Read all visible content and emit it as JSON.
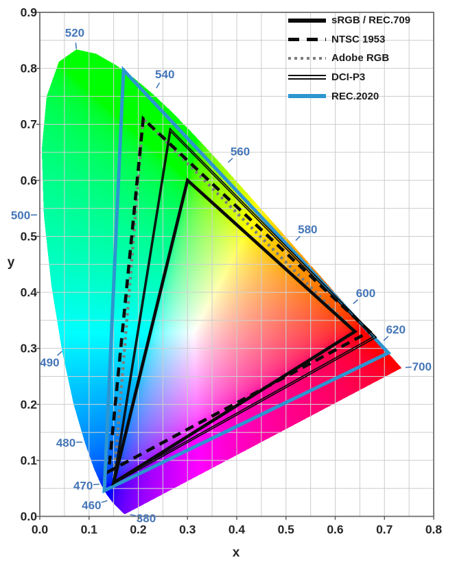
{
  "figure": {
    "xlabel": "x",
    "ylabel": "y"
  },
  "colors": {
    "wavelength_label": "#4576b8",
    "axis_text": "#262626",
    "grid": "#cccccc",
    "grid_over_fill": "rgba(255,255,255,0.25)",
    "plot_border": "#6e6e6e",
    "tick": "#555555",
    "rec2020_blue": "#2d96d0",
    "adobe_gray": "#7d7d7d",
    "line_black": "#0a0a0a"
  },
  "legend": {
    "items": [
      {
        "label": "sRGB / REC.709",
        "line_style": "solid",
        "color": "#0a0a0a"
      },
      {
        "label": "NTSC 1953",
        "line_style": "dashed",
        "color": "#0a0a0a"
      },
      {
        "label": "Adobe RGB",
        "line_style": "dotted",
        "color": "#7d7d7d"
      },
      {
        "label": "DCI-P3",
        "line_style": "double",
        "color": "#0a0a0a"
      },
      {
        "label": "REC.2020",
        "line_style": "solid",
        "color": "#2d96d0"
      }
    ]
  },
  "chart_data": {
    "type": "area",
    "subtype": "cie-1931-xy-chromaticity-diagram",
    "title": "",
    "xlabel": "x",
    "ylabel": "y",
    "xlim": [
      0.0,
      0.8
    ],
    "ylim": [
      0.0,
      0.9
    ],
    "x_ticks": [
      0.0,
      0.1,
      0.2,
      0.3,
      0.4,
      0.5,
      0.6,
      0.7,
      0.8
    ],
    "y_ticks": [
      0.0,
      0.1,
      0.2,
      0.3,
      0.4,
      0.5,
      0.6,
      0.7,
      0.8,
      0.9
    ],
    "grid_step": 0.05,
    "grid": true,
    "legend_position": "top-right",
    "gamuts": [
      {
        "name": "sRGB / REC.709",
        "style": "solid",
        "color": "#0a0a0a",
        "primaries": {
          "red": [
            0.64,
            0.33
          ],
          "green": [
            0.3,
            0.6
          ],
          "blue": [
            0.15,
            0.06
          ]
        }
      },
      {
        "name": "NTSC 1953",
        "style": "dashed",
        "color": "#0a0a0a",
        "primaries": {
          "red": [
            0.67,
            0.33
          ],
          "green": [
            0.21,
            0.71
          ],
          "blue": [
            0.14,
            0.08
          ]
        }
      },
      {
        "name": "Adobe RGB",
        "style": "dotted",
        "color": "#7d7d7d",
        "primaries": {
          "red": [
            0.64,
            0.33
          ],
          "green": [
            0.21,
            0.71
          ],
          "blue": [
            0.15,
            0.06
          ]
        }
      },
      {
        "name": "DCI-P3",
        "style": "double",
        "color": "#0a0a0a",
        "primaries": {
          "red": [
            0.68,
            0.32
          ],
          "green": [
            0.265,
            0.69
          ],
          "blue": [
            0.15,
            0.06
          ]
        }
      },
      {
        "name": "REC.2020",
        "style": "solid",
        "color": "#2d96d0",
        "primaries": {
          "red": [
            0.708,
            0.292
          ],
          "green": [
            0.17,
            0.797
          ],
          "blue": [
            0.131,
            0.046
          ]
        }
      }
    ],
    "wavelength_labels": [
      {
        "nm": 380,
        "label_xy": [
          0.216,
          -0.003
        ],
        "locus_xy": [
          0.1741,
          0.005
        ]
      },
      {
        "nm": 460,
        "label_xy": [
          0.105,
          0.02
        ],
        "locus_xy": [
          0.144,
          0.0297
        ]
      },
      {
        "nm": 470,
        "label_xy": [
          0.088,
          0.055
        ],
        "locus_xy": [
          0.1241,
          0.0578
        ]
      },
      {
        "nm": 480,
        "label_xy": [
          0.053,
          0.132
        ],
        "locus_xy": [
          0.0913,
          0.1327
        ]
      },
      {
        "nm": 490,
        "label_xy": [
          0.02,
          0.275
        ],
        "locus_xy": [
          0.0454,
          0.295
        ]
      },
      {
        "nm": 500,
        "label_xy": [
          -0.039,
          0.538
        ],
        "locus_xy": [
          0.0082,
          0.5384
        ]
      },
      {
        "nm": 520,
        "label_xy": [
          0.071,
          0.864
        ],
        "locus_xy": [
          0.0743,
          0.8338
        ]
      },
      {
        "nm": 540,
        "label_xy": [
          0.254,
          0.79
        ],
        "locus_xy": [
          0.2296,
          0.7543
        ]
      },
      {
        "nm": 560,
        "label_xy": [
          0.407,
          0.652
        ],
        "locus_xy": [
          0.3731,
          0.6245
        ]
      },
      {
        "nm": 580,
        "label_xy": [
          0.544,
          0.513
        ],
        "locus_xy": [
          0.5125,
          0.4866
        ]
      },
      {
        "nm": 600,
        "label_xy": [
          0.662,
          0.399
        ],
        "locus_xy": [
          0.627,
          0.3725
        ]
      },
      {
        "nm": 620,
        "label_xy": [
          0.723,
          0.334
        ],
        "locus_xy": [
          0.6915,
          0.3083
        ]
      },
      {
        "nm": 700,
        "label_xy": [
          0.776,
          0.268
        ],
        "locus_xy": [
          0.7347,
          0.2653
        ]
      }
    ],
    "spectral_locus": [
      [
        380,
        0.1741,
        0.005
      ],
      [
        385,
        0.174,
        0.005
      ],
      [
        390,
        0.1738,
        0.0049
      ],
      [
        395,
        0.1736,
        0.0049
      ],
      [
        400,
        0.1733,
        0.0048
      ],
      [
        405,
        0.173,
        0.0048
      ],
      [
        410,
        0.1726,
        0.0048
      ],
      [
        415,
        0.1721,
        0.0048
      ],
      [
        420,
        0.1714,
        0.0051
      ],
      [
        425,
        0.1703,
        0.0058
      ],
      [
        430,
        0.1689,
        0.0069
      ],
      [
        435,
        0.1669,
        0.0086
      ],
      [
        440,
        0.1644,
        0.0109
      ],
      [
        445,
        0.1611,
        0.0138
      ],
      [
        450,
        0.1566,
        0.0177
      ],
      [
        455,
        0.151,
        0.0227
      ],
      [
        460,
        0.144,
        0.0297
      ],
      [
        465,
        0.1355,
        0.0399
      ],
      [
        470,
        0.1241,
        0.0578
      ],
      [
        475,
        0.1096,
        0.0868
      ],
      [
        480,
        0.0913,
        0.1327
      ],
      [
        485,
        0.0687,
        0.2007
      ],
      [
        490,
        0.0454,
        0.295
      ],
      [
        495,
        0.0235,
        0.4127
      ],
      [
        500,
        0.0082,
        0.5384
      ],
      [
        505,
        0.0039,
        0.6548
      ],
      [
        510,
        0.0139,
        0.7502
      ],
      [
        515,
        0.0389,
        0.812
      ],
      [
        520,
        0.0743,
        0.8338
      ],
      [
        525,
        0.1142,
        0.8262
      ],
      [
        530,
        0.1547,
        0.8059
      ],
      [
        535,
        0.1929,
        0.7816
      ],
      [
        540,
        0.2296,
        0.7543
      ],
      [
        545,
        0.2658,
        0.7243
      ],
      [
        550,
        0.3016,
        0.6923
      ],
      [
        555,
        0.3373,
        0.6589
      ],
      [
        560,
        0.3731,
        0.6245
      ],
      [
        565,
        0.4087,
        0.5896
      ],
      [
        570,
        0.4441,
        0.5547
      ],
      [
        575,
        0.4788,
        0.5202
      ],
      [
        580,
        0.5125,
        0.4866
      ],
      [
        585,
        0.5448,
        0.4544
      ],
      [
        590,
        0.5752,
        0.4242
      ],
      [
        595,
        0.6029,
        0.3965
      ],
      [
        600,
        0.627,
        0.3725
      ],
      [
        605,
        0.6482,
        0.3514
      ],
      [
        610,
        0.6658,
        0.334
      ],
      [
        615,
        0.6801,
        0.3197
      ],
      [
        620,
        0.6915,
        0.3083
      ],
      [
        625,
        0.7006,
        0.2993
      ],
      [
        630,
        0.7079,
        0.292
      ],
      [
        635,
        0.714,
        0.2859
      ],
      [
        640,
        0.719,
        0.2809
      ],
      [
        645,
        0.723,
        0.277
      ],
      [
        650,
        0.726,
        0.274
      ],
      [
        655,
        0.7283,
        0.2717
      ],
      [
        660,
        0.73,
        0.27
      ],
      [
        665,
        0.7311,
        0.2689
      ],
      [
        670,
        0.732,
        0.268
      ],
      [
        675,
        0.7327,
        0.2673
      ],
      [
        680,
        0.7334,
        0.2666
      ],
      [
        685,
        0.734,
        0.266
      ],
      [
        690,
        0.7344,
        0.2656
      ],
      [
        695,
        0.7346,
        0.2654
      ],
      [
        700,
        0.7347,
        0.2653
      ]
    ]
  }
}
